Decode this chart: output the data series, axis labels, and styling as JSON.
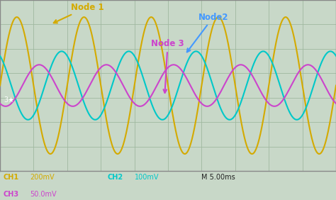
{
  "background_color": "#c8d8c8",
  "plot_bg_color": "#c8d8c8",
  "grid_color": "#a0b8a0",
  "border_color": "#888888",
  "xlim": [
    0,
    50
  ],
  "ylim": [
    -3.5,
    3.5
  ],
  "ch1_color": "#d4aa00",
  "ch2_color": "#00c8c8",
  "ch3_color": "#cc44cc",
  "ch1_amplitude": 2.8,
  "ch2_amplitude": 1.4,
  "ch3_amplitude": 0.85,
  "ch1_phase": 0.0,
  "ch2_phase": 2.094,
  "ch3_phase": 4.189,
  "node1_label": "Node 1",
  "node2_label": "Node2",
  "node3_label": "Node 3",
  "node1_color": "#d4aa00",
  "node2_color": "#4499ff",
  "node3_color": "#cc44cc",
  "ch1_label": "CH1",
  "ch1_scale": "200mV",
  "ch2_label": "CH2",
  "ch2_scale": "100mV",
  "ch3_label": "CH3",
  "ch3_scale": "50.0mV",
  "time_scale": "M 5.00ms",
  "bottom_bar_color": "#d8d8d0"
}
